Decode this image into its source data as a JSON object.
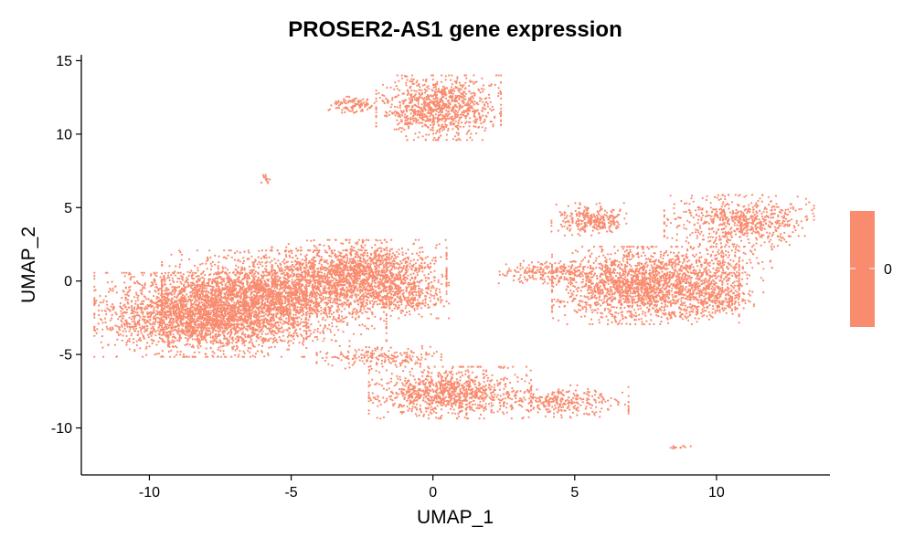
{
  "chart_data": {
    "type": "scatter",
    "title": "PROSER2-AS1 gene expression",
    "xlabel": "UMAP_1",
    "ylabel": "UMAP_2",
    "xlim": [
      -12.4,
      14.0
    ],
    "ylim": [
      -13.2,
      15.4
    ],
    "x_ticks": [
      -10,
      -5,
      0,
      5,
      10
    ],
    "x_tick_labels": [
      "-10",
      "-5",
      "0",
      "5",
      "10"
    ],
    "y_ticks": [
      -10,
      -5,
      0,
      5,
      10,
      15
    ],
    "y_tick_labels": [
      "-10",
      "-5",
      "0",
      "5",
      "10",
      "15"
    ],
    "grid": false,
    "point_color": "#F98B6E",
    "legend": {
      "position": "right",
      "entries": [
        {
          "label": "0",
          "color": "#F98B6E"
        }
      ]
    },
    "clusters": [
      {
        "name": "left-large-1",
        "center": [
          -8.2,
          -2.3
        ],
        "spread": [
          1.7,
          1.3
        ],
        "n": 2600
      },
      {
        "name": "left-large-2",
        "center": [
          -5.6,
          -1.0
        ],
        "spread": [
          1.8,
          1.4
        ],
        "n": 2400
      },
      {
        "name": "left-large-3",
        "center": [
          -2.6,
          0.6
        ],
        "spread": [
          1.4,
          1.0
        ],
        "n": 1400
      },
      {
        "name": "left-tail",
        "center": [
          -1.2,
          -1.0
        ],
        "spread": [
          0.8,
          0.7
        ],
        "n": 350
      },
      {
        "name": "top-main",
        "center": [
          0.2,
          11.8
        ],
        "spread": [
          1.0,
          1.0
        ],
        "n": 1000
      },
      {
        "name": "top-small",
        "center": [
          -2.8,
          12.0
        ],
        "spread": [
          0.4,
          0.25
        ],
        "n": 110
      },
      {
        "name": "tiny-upper",
        "center": [
          -5.9,
          7.0
        ],
        "spread": [
          0.12,
          0.15
        ],
        "n": 14
      },
      {
        "name": "bottom-main",
        "center": [
          0.6,
          -7.6
        ],
        "spread": [
          1.3,
          0.8
        ],
        "n": 1000
      },
      {
        "name": "bottom-arm",
        "center": [
          -1.9,
          -5.2
        ],
        "spread": [
          1.0,
          0.35
        ],
        "n": 200
      },
      {
        "name": "bottom-tail",
        "center": [
          4.7,
          -8.2
        ],
        "spread": [
          1.0,
          0.5
        ],
        "n": 300
      },
      {
        "name": "tiny-lower",
        "center": [
          8.7,
          -11.3
        ],
        "spread": [
          0.2,
          0.08
        ],
        "n": 14
      },
      {
        "name": "right-main",
        "center": [
          7.5,
          -0.3
        ],
        "spread": [
          1.5,
          1.2
        ],
        "n": 2000
      },
      {
        "name": "right-upper-left",
        "center": [
          5.5,
          4.2
        ],
        "spread": [
          0.6,
          0.5
        ],
        "n": 280
      },
      {
        "name": "right-upper-right",
        "center": [
          10.8,
          4.1
        ],
        "spread": [
          1.2,
          0.8
        ],
        "n": 650
      },
      {
        "name": "right-arm-left",
        "center": [
          4.3,
          0.6
        ],
        "spread": [
          0.9,
          0.35
        ],
        "n": 230
      },
      {
        "name": "right-lower",
        "center": [
          10.0,
          -1.3
        ],
        "spread": [
          0.6,
          0.5
        ],
        "n": 200
      },
      {
        "name": "right-bridge",
        "center": [
          10.2,
          1.0
        ],
        "spread": [
          0.8,
          0.9
        ],
        "n": 220
      }
    ]
  }
}
